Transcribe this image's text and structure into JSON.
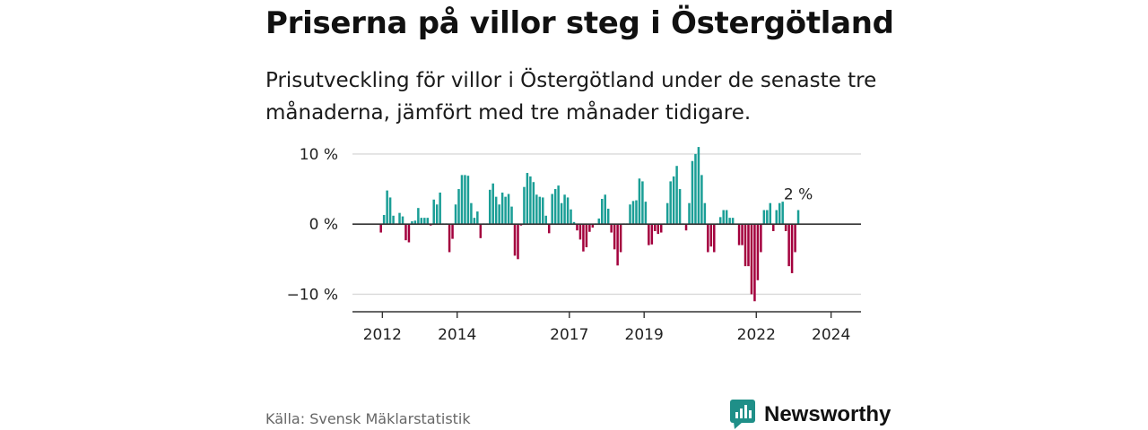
{
  "header": {
    "title": "Priserna på villor steg i Östergötland",
    "subtitle": "Prisutveckling för villor i Östergötland under de senaste tre månaderna, jämfört med tre månader tidigare."
  },
  "footer": {
    "source": "Källa: Svensk Mäklarstatistik",
    "brand": "Newsworthy"
  },
  "colors": {
    "positive": "#1a9e96",
    "negative": "#a3003d",
    "grid": "#d9d9d9",
    "brand": "#1f8f88"
  },
  "chart_data": {
    "type": "bar",
    "title": "Prisutveckling för villor i Östergötland",
    "ylabel": "",
    "xlabel": "",
    "ylim": [
      -12.5,
      10.5
    ],
    "xlim": [
      2011.2,
      2024.8
    ],
    "grid": true,
    "y_ticks": [
      {
        "value": 10,
        "label": "10 %"
      },
      {
        "value": 0,
        "label": "0 %"
      },
      {
        "value": -10,
        "label": "−10 %"
      }
    ],
    "x_ticks": [
      {
        "value": 2012,
        "label": "2012"
      },
      {
        "value": 2014,
        "label": "2014"
      },
      {
        "value": 2017,
        "label": "2017"
      },
      {
        "value": 2019,
        "label": "2019"
      },
      {
        "value": 2022,
        "label": "2022"
      },
      {
        "value": 2024,
        "label": "2024"
      }
    ],
    "start": 2011.96,
    "step": 0.0833,
    "values": [
      -1.2,
      1.3,
      4.8,
      3.8,
      1.2,
      0.1,
      1.6,
      1.1,
      -2.3,
      -2.6,
      0.4,
      0.5,
      2.3,
      0.9,
      0.9,
      0.9,
      -0.2,
      3.5,
      2.8,
      4.5,
      0.1,
      0.1,
      -4.0,
      -2.1,
      2.8,
      5.0,
      7.0,
      7.0,
      6.9,
      3.0,
      0.9,
      1.8,
      -2.0,
      0.1,
      0.1,
      4.9,
      5.8,
      3.9,
      2.8,
      4.5,
      3.9,
      4.3,
      2.5,
      -4.5,
      -5.0,
      -0.2,
      5.3,
      7.3,
      6.8,
      6.0,
      4.2,
      3.9,
      3.8,
      1.2,
      -1.3,
      4.3,
      5.0,
      5.5,
      3.0,
      4.2,
      3.8,
      2.1,
      0.3,
      -0.9,
      -2.2,
      -3.9,
      -3.3,
      -1.1,
      -0.5,
      0.1,
      0.8,
      3.6,
      4.2,
      2.2,
      -1.2,
      -3.6,
      -5.9,
      -4.0,
      0.1,
      0.1,
      2.8,
      3.3,
      3.4,
      6.5,
      6.1,
      3.2,
      -3.0,
      -2.9,
      -1.0,
      -1.4,
      -1.2,
      0.1,
      3.0,
      6.1,
      6.8,
      8.3,
      5.0,
      0.1,
      -0.9,
      3.0,
      9.0,
      10.0,
      11.0,
      7.0,
      3.0,
      -4.0,
      -3.2,
      -4.0,
      0.1,
      1.0,
      2.0,
      2.0,
      0.9,
      0.9,
      -0.1,
      -3.0,
      -3.0,
      -6.0,
      -6.0,
      -10.0,
      -11.0,
      -8.0,
      -4.0,
      2.0,
      2.0,
      3.0,
      -1.0,
      2.0,
      3.0,
      3.2,
      -1.0,
      -6.0,
      -7.0,
      -4.0,
      2.0
    ],
    "annotations": [
      {
        "index": 134,
        "label": "2 %"
      }
    ]
  }
}
